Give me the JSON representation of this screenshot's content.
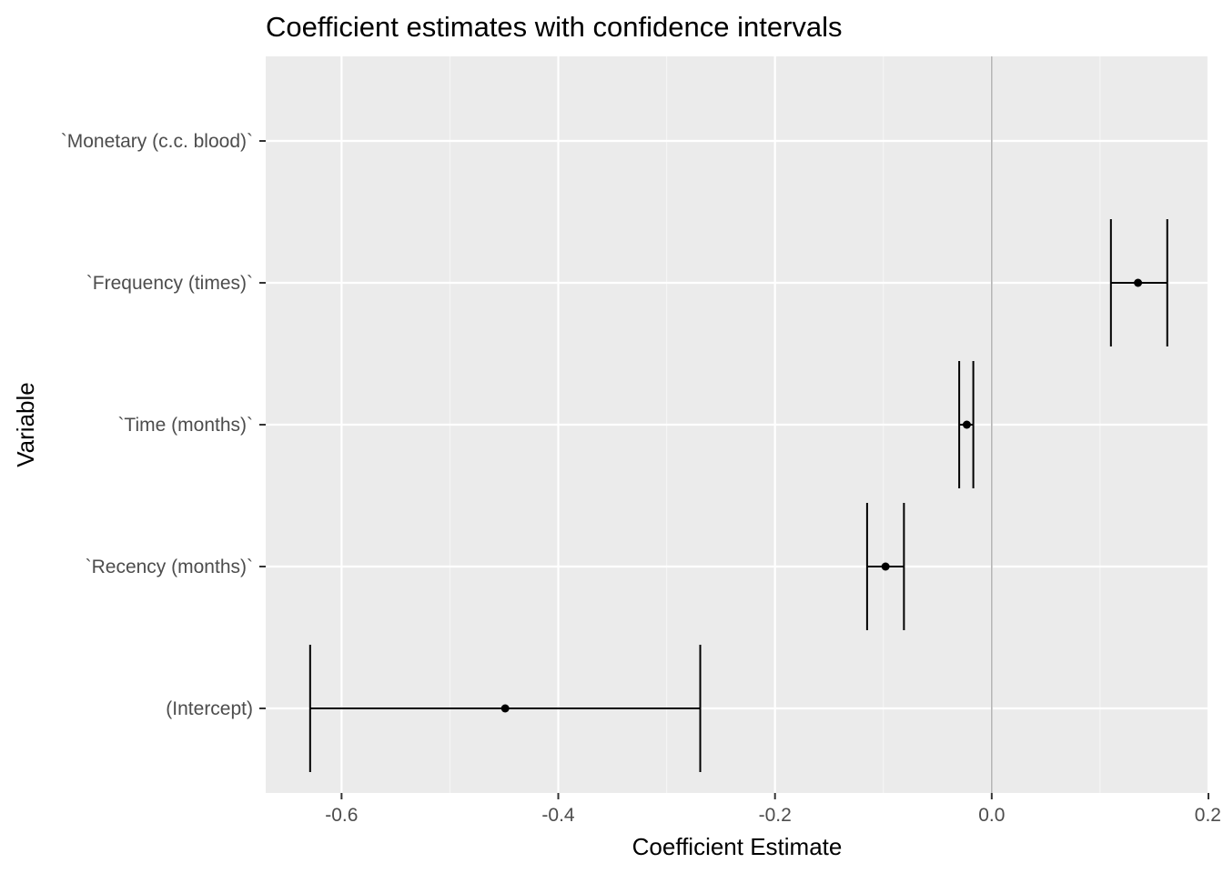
{
  "chart_data": {
    "type": "errorbar",
    "title": "Coefficient estimates with confidence intervals",
    "xlabel": "Coefficient Estimate",
    "ylabel": "Variable",
    "xlim": [
      -0.67,
      0.2
    ],
    "x_ticks": [
      -0.6,
      -0.4,
      -0.2,
      0.0,
      0.2
    ],
    "x_tick_labels": [
      "-0.6",
      "-0.4",
      "-0.2",
      "0.0",
      "0.2"
    ],
    "reference_line_x": 0.0,
    "grid": true,
    "categories": [
      "(Intercept)",
      "`Recency (months)`",
      "`Time (months)`",
      "`Frequency (times)`",
      "`Monetary (c.c. blood)`"
    ],
    "estimates": [
      -0.449,
      -0.098,
      -0.023,
      0.135,
      null
    ],
    "lower": [
      -0.629,
      -0.115,
      -0.03,
      0.11,
      null
    ],
    "upper": [
      -0.269,
      -0.081,
      -0.017,
      0.162,
      null
    ],
    "colors": {
      "panel_background": "#ebebeb",
      "grid_major": "#ffffff",
      "grid_minor": "#f5f5f5",
      "reference_line": "#b3b3b3",
      "marks": "#000000"
    }
  }
}
